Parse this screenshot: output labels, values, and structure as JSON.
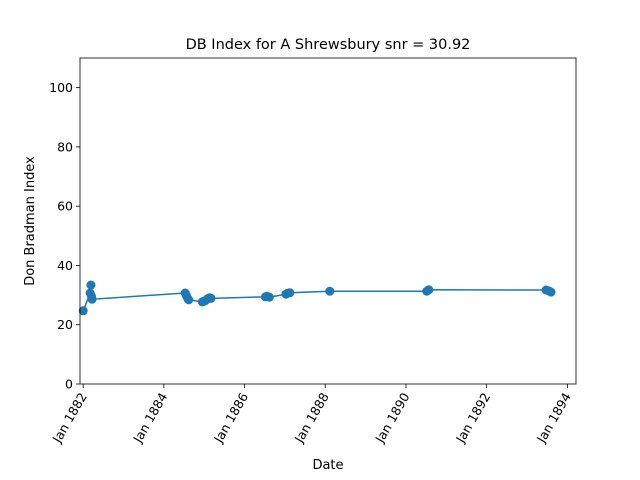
{
  "chart_data": {
    "type": "line",
    "title": "DB Index for A Shrewsbury snr = 30.92",
    "xlabel": "Date",
    "ylabel": "Don Bradman Index",
    "xlim": [
      "1881-12-03",
      "1894-03-20"
    ],
    "ylim": [
      0,
      110
    ],
    "grid": false,
    "legend": "none",
    "colors": {
      "series": "#1f77b4",
      "axes": "#000000",
      "background": "#ffffff"
    },
    "x_ticks": [
      {
        "date": "1882-01-01",
        "label": "Jan 1882"
      },
      {
        "date": "1884-01-01",
        "label": "Jan 1884"
      },
      {
        "date": "1886-01-01",
        "label": "Jan 1886"
      },
      {
        "date": "1888-01-01",
        "label": "Jan 1888"
      },
      {
        "date": "1890-01-01",
        "label": "Jan 1890"
      },
      {
        "date": "1892-01-01",
        "label": "Jan 1892"
      },
      {
        "date": "1894-01-01",
        "label": "Jan 1894"
      }
    ],
    "y_ticks": [
      {
        "value": 0,
        "label": "0"
      },
      {
        "value": 20,
        "label": "20"
      },
      {
        "value": 40,
        "label": "40"
      },
      {
        "value": 60,
        "label": "60"
      },
      {
        "value": 80,
        "label": "80"
      },
      {
        "value": 100,
        "label": "100"
      }
    ],
    "series": [
      {
        "points": [
          {
            "x": "1882-01-01",
            "y": 24.7
          },
          {
            "x": "1882-03-05",
            "y": 30.7
          },
          {
            "x": "1882-03-12",
            "y": 33.4
          },
          {
            "x": "1882-03-17",
            "y": 29.6
          },
          {
            "x": "1882-03-22",
            "y": 28.6
          },
          {
            "x": "1884-07-12",
            "y": 30.7
          },
          {
            "x": "1884-07-23",
            "y": 29.8
          },
          {
            "x": "1884-08-06",
            "y": 28.8
          },
          {
            "x": "1884-08-13",
            "y": 28.4
          },
          {
            "x": "1884-12-14",
            "y": 27.7
          },
          {
            "x": "1884-12-28",
            "y": 27.9
          },
          {
            "x": "1885-01-10",
            "y": 28.1
          },
          {
            "x": "1885-02-01",
            "y": 28.8
          },
          {
            "x": "1885-02-18",
            "y": 29.1
          },
          {
            "x": "1885-03-03",
            "y": 28.9
          },
          {
            "x": "1886-07-08",
            "y": 29.4
          },
          {
            "x": "1886-07-21",
            "y": 29.6
          },
          {
            "x": "1886-08-13",
            "y": 29.3
          },
          {
            "x": "1887-01-10",
            "y": 30.3
          },
          {
            "x": "1887-01-24",
            "y": 30.6
          },
          {
            "x": "1887-02-14",
            "y": 30.8
          },
          {
            "x": "1888-02-11",
            "y": 31.3
          },
          {
            "x": "1890-07-08",
            "y": 31.3
          },
          {
            "x": "1890-07-26",
            "y": 31.8
          },
          {
            "x": "1893-06-22",
            "y": 31.7
          },
          {
            "x": "1893-07-18",
            "y": 31.4
          },
          {
            "x": "1893-08-06",
            "y": 31.0
          }
        ]
      }
    ]
  }
}
